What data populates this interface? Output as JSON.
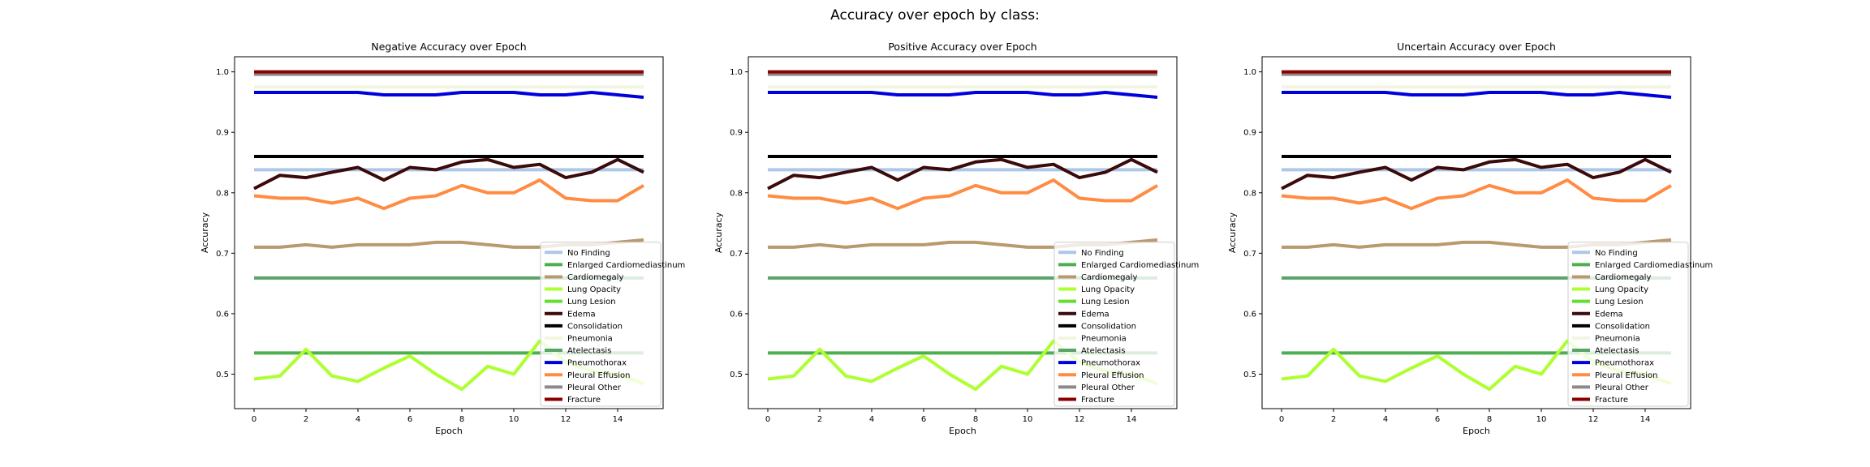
{
  "figure": {
    "title": "Accuracy over epoch by class:"
  },
  "chart_data": [
    {
      "type": "line",
      "title": "Negative Accuracy over Epoch",
      "xlabel": "Epoch",
      "ylabel": "Accuracy",
      "xlim": [
        -0.75,
        15.75
      ],
      "ylim": [
        0.443,
        1.025
      ],
      "xticks": [
        0,
        2,
        4,
        6,
        8,
        10,
        12,
        14
      ],
      "yticks": [
        0.5,
        0.6,
        0.7,
        0.8,
        0.9,
        1.0
      ],
      "ytick_labels": [
        "0.5",
        "0.6",
        "0.7",
        "0.8",
        "0.9",
        "1.0"
      ],
      "grid": false,
      "legend_position": "lower-right",
      "x": [
        0,
        1,
        2,
        3,
        4,
        5,
        6,
        7,
        8,
        9,
        10,
        11,
        12,
        13,
        14,
        15
      ],
      "series": [
        {
          "name": "No Finding",
          "color": "#aec7e8",
          "values": [
            0.838,
            0.838,
            0.838,
            0.838,
            0.838,
            0.838,
            0.838,
            0.838,
            0.838,
            0.838,
            0.838,
            0.838,
            0.838,
            0.838,
            0.838,
            0.838
          ]
        },
        {
          "name": "Enlarged Cardiomediastinum",
          "color": "#4caf50",
          "values": [
            0.535,
            0.535,
            0.535,
            0.535,
            0.535,
            0.535,
            0.535,
            0.535,
            0.535,
            0.535,
            0.535,
            0.535,
            0.535,
            0.535,
            0.535,
            0.535
          ]
        },
        {
          "name": "Cardiomegaly",
          "color": "#b89a6e",
          "values": [
            0.71,
            0.71,
            0.714,
            0.71,
            0.714,
            0.714,
            0.714,
            0.718,
            0.718,
            0.714,
            0.71,
            0.71,
            0.714,
            0.714,
            0.718,
            0.722
          ]
        },
        {
          "name": "Lung Opacity",
          "color": "#adff2f",
          "values": [
            0.492,
            0.497,
            0.541,
            0.497,
            0.488,
            0.51,
            0.53,
            0.5,
            0.475,
            0.513,
            0.5,
            0.555,
            0.52,
            0.505,
            0.5,
            0.484
          ]
        },
        {
          "name": "Lung Lesion",
          "color": "#66dd33",
          "values": [
            0.997,
            0.997,
            0.997,
            0.997,
            0.997,
            0.997,
            0.997,
            0.997,
            0.997,
            0.997,
            0.997,
            0.997,
            0.997,
            0.997,
            0.997,
            0.997
          ]
        },
        {
          "name": "Edema",
          "color": "#3b0a0a",
          "values": [
            0.807,
            0.829,
            0.825,
            0.834,
            0.842,
            0.821,
            0.842,
            0.838,
            0.851,
            0.855,
            0.842,
            0.847,
            0.825,
            0.834,
            0.855,
            0.834
          ]
        },
        {
          "name": "Consolidation",
          "color": "#000000",
          "values": [
            0.86,
            0.86,
            0.86,
            0.86,
            0.86,
            0.86,
            0.86,
            0.86,
            0.86,
            0.86,
            0.86,
            0.86,
            0.86,
            0.86,
            0.86,
            0.86
          ]
        },
        {
          "name": "Pneumonia",
          "color": "#f2f5e0",
          "values": [
            0.975,
            0.975,
            0.975,
            0.975,
            0.975,
            0.975,
            0.975,
            0.975,
            0.975,
            0.975,
            0.975,
            0.975,
            0.975,
            0.975,
            0.975,
            0.975
          ]
        },
        {
          "name": "Atelectasis",
          "color": "#5aa469",
          "values": [
            0.659,
            0.659,
            0.659,
            0.659,
            0.659,
            0.659,
            0.659,
            0.659,
            0.659,
            0.659,
            0.659,
            0.659,
            0.659,
            0.659,
            0.659,
            0.659
          ]
        },
        {
          "name": "Pneumothorax",
          "color": "#0000dd",
          "values": [
            0.966,
            0.966,
            0.966,
            0.966,
            0.966,
            0.962,
            0.962,
            0.962,
            0.966,
            0.966,
            0.966,
            0.962,
            0.962,
            0.966,
            0.962,
            0.958
          ]
        },
        {
          "name": "Pleural Effusion",
          "color": "#ff8c42",
          "values": [
            0.795,
            0.791,
            0.791,
            0.783,
            0.791,
            0.774,
            0.791,
            0.795,
            0.812,
            0.8,
            0.8,
            0.821,
            0.791,
            0.787,
            0.787,
            0.812
          ]
        },
        {
          "name": "Pleural Other",
          "color": "#8a8a8a",
          "values": [
            0.996,
            0.996,
            0.996,
            0.996,
            0.996,
            0.996,
            0.996,
            0.996,
            0.996,
            0.996,
            0.996,
            0.996,
            0.996,
            0.996,
            0.996,
            0.996
          ]
        },
        {
          "name": "Fracture",
          "color": "#8b0000",
          "values": [
            1.0,
            1.0,
            1.0,
            1.0,
            1.0,
            1.0,
            1.0,
            1.0,
            1.0,
            1.0,
            1.0,
            1.0,
            1.0,
            1.0,
            1.0,
            1.0
          ]
        }
      ]
    },
    {
      "type": "line",
      "title": "Positive Accuracy over Epoch",
      "xlabel": "Epoch",
      "ylabel": "Accuracy",
      "xlim": [
        -0.75,
        15.75
      ],
      "ylim": [
        0.443,
        1.025
      ],
      "xticks": [
        0,
        2,
        4,
        6,
        8,
        10,
        12,
        14
      ],
      "yticks": [
        0.5,
        0.6,
        0.7,
        0.8,
        0.9,
        1.0
      ],
      "ytick_labels": [
        "0.5",
        "0.6",
        "0.7",
        "0.8",
        "0.9",
        "1.0"
      ],
      "grid": false,
      "legend_position": "lower-right",
      "x": [
        0,
        1,
        2,
        3,
        4,
        5,
        6,
        7,
        8,
        9,
        10,
        11,
        12,
        13,
        14,
        15
      ],
      "series": [
        {
          "name": "No Finding",
          "color": "#aec7e8",
          "values": [
            0.838,
            0.838,
            0.838,
            0.838,
            0.838,
            0.838,
            0.838,
            0.838,
            0.838,
            0.838,
            0.838,
            0.838,
            0.838,
            0.838,
            0.838,
            0.838
          ]
        },
        {
          "name": "Enlarged Cardiomediastinum",
          "color": "#4caf50",
          "values": [
            0.535,
            0.535,
            0.535,
            0.535,
            0.535,
            0.535,
            0.535,
            0.535,
            0.535,
            0.535,
            0.535,
            0.535,
            0.535,
            0.535,
            0.535,
            0.535
          ]
        },
        {
          "name": "Cardiomegaly",
          "color": "#b89a6e",
          "values": [
            0.71,
            0.71,
            0.714,
            0.71,
            0.714,
            0.714,
            0.714,
            0.718,
            0.718,
            0.714,
            0.71,
            0.71,
            0.714,
            0.714,
            0.718,
            0.722
          ]
        },
        {
          "name": "Lung Opacity",
          "color": "#adff2f",
          "values": [
            0.492,
            0.497,
            0.541,
            0.497,
            0.488,
            0.51,
            0.53,
            0.5,
            0.475,
            0.513,
            0.5,
            0.555,
            0.52,
            0.505,
            0.5,
            0.484
          ]
        },
        {
          "name": "Lung Lesion",
          "color": "#66dd33",
          "values": [
            0.997,
            0.997,
            0.997,
            0.997,
            0.997,
            0.997,
            0.997,
            0.997,
            0.997,
            0.997,
            0.997,
            0.997,
            0.997,
            0.997,
            0.997,
            0.997
          ]
        },
        {
          "name": "Edema",
          "color": "#3b0a0a",
          "values": [
            0.807,
            0.829,
            0.825,
            0.834,
            0.842,
            0.821,
            0.842,
            0.838,
            0.851,
            0.855,
            0.842,
            0.847,
            0.825,
            0.834,
            0.855,
            0.834
          ]
        },
        {
          "name": "Consolidation",
          "color": "#000000",
          "values": [
            0.86,
            0.86,
            0.86,
            0.86,
            0.86,
            0.86,
            0.86,
            0.86,
            0.86,
            0.86,
            0.86,
            0.86,
            0.86,
            0.86,
            0.86,
            0.86
          ]
        },
        {
          "name": "Pneumonia",
          "color": "#f2f5e0",
          "values": [
            0.975,
            0.975,
            0.975,
            0.975,
            0.975,
            0.975,
            0.975,
            0.975,
            0.975,
            0.975,
            0.975,
            0.975,
            0.975,
            0.975,
            0.975,
            0.975
          ]
        },
        {
          "name": "Atelectasis",
          "color": "#5aa469",
          "values": [
            0.659,
            0.659,
            0.659,
            0.659,
            0.659,
            0.659,
            0.659,
            0.659,
            0.659,
            0.659,
            0.659,
            0.659,
            0.659,
            0.659,
            0.659,
            0.659
          ]
        },
        {
          "name": "Pneumothorax",
          "color": "#0000dd",
          "values": [
            0.966,
            0.966,
            0.966,
            0.966,
            0.966,
            0.962,
            0.962,
            0.962,
            0.966,
            0.966,
            0.966,
            0.962,
            0.962,
            0.966,
            0.962,
            0.958
          ]
        },
        {
          "name": "Pleural Effusion",
          "color": "#ff8c42",
          "values": [
            0.795,
            0.791,
            0.791,
            0.783,
            0.791,
            0.774,
            0.791,
            0.795,
            0.812,
            0.8,
            0.8,
            0.821,
            0.791,
            0.787,
            0.787,
            0.812
          ]
        },
        {
          "name": "Pleural Other",
          "color": "#8a8a8a",
          "values": [
            0.996,
            0.996,
            0.996,
            0.996,
            0.996,
            0.996,
            0.996,
            0.996,
            0.996,
            0.996,
            0.996,
            0.996,
            0.996,
            0.996,
            0.996,
            0.996
          ]
        },
        {
          "name": "Fracture",
          "color": "#8b0000",
          "values": [
            1.0,
            1.0,
            1.0,
            1.0,
            1.0,
            1.0,
            1.0,
            1.0,
            1.0,
            1.0,
            1.0,
            1.0,
            1.0,
            1.0,
            1.0,
            1.0
          ]
        }
      ]
    },
    {
      "type": "line",
      "title": "Uncertain Accuracy over Epoch",
      "xlabel": "Epoch",
      "ylabel": "Accuracy",
      "xlim": [
        -0.75,
        15.75
      ],
      "ylim": [
        0.443,
        1.025
      ],
      "xticks": [
        0,
        2,
        4,
        6,
        8,
        10,
        12,
        14
      ],
      "yticks": [
        0.5,
        0.6,
        0.7,
        0.8,
        0.9,
        1.0
      ],
      "ytick_labels": [
        "0.5",
        "0.6",
        "0.7",
        "0.8",
        "0.9",
        "1.0"
      ],
      "grid": false,
      "legend_position": "lower-right",
      "x": [
        0,
        1,
        2,
        3,
        4,
        5,
        6,
        7,
        8,
        9,
        10,
        11,
        12,
        13,
        14,
        15
      ],
      "series": [
        {
          "name": "No Finding",
          "color": "#aec7e8",
          "values": [
            0.838,
            0.838,
            0.838,
            0.838,
            0.838,
            0.838,
            0.838,
            0.838,
            0.838,
            0.838,
            0.838,
            0.838,
            0.838,
            0.838,
            0.838,
            0.838
          ]
        },
        {
          "name": "Enlarged Cardiomediastinum",
          "color": "#4caf50",
          "values": [
            0.535,
            0.535,
            0.535,
            0.535,
            0.535,
            0.535,
            0.535,
            0.535,
            0.535,
            0.535,
            0.535,
            0.535,
            0.535,
            0.535,
            0.535,
            0.535
          ]
        },
        {
          "name": "Cardiomegaly",
          "color": "#b89a6e",
          "values": [
            0.71,
            0.71,
            0.714,
            0.71,
            0.714,
            0.714,
            0.714,
            0.718,
            0.718,
            0.714,
            0.71,
            0.71,
            0.714,
            0.714,
            0.718,
            0.722
          ]
        },
        {
          "name": "Lung Opacity",
          "color": "#adff2f",
          "values": [
            0.492,
            0.497,
            0.541,
            0.497,
            0.488,
            0.51,
            0.53,
            0.5,
            0.475,
            0.513,
            0.5,
            0.555,
            0.52,
            0.505,
            0.5,
            0.484
          ]
        },
        {
          "name": "Lung Lesion",
          "color": "#66dd33",
          "values": [
            0.997,
            0.997,
            0.997,
            0.997,
            0.997,
            0.997,
            0.997,
            0.997,
            0.997,
            0.997,
            0.997,
            0.997,
            0.997,
            0.997,
            0.997,
            0.997
          ]
        },
        {
          "name": "Edema",
          "color": "#3b0a0a",
          "values": [
            0.807,
            0.829,
            0.825,
            0.834,
            0.842,
            0.821,
            0.842,
            0.838,
            0.851,
            0.855,
            0.842,
            0.847,
            0.825,
            0.834,
            0.855,
            0.834
          ]
        },
        {
          "name": "Consolidation",
          "color": "#000000",
          "values": [
            0.86,
            0.86,
            0.86,
            0.86,
            0.86,
            0.86,
            0.86,
            0.86,
            0.86,
            0.86,
            0.86,
            0.86,
            0.86,
            0.86,
            0.86,
            0.86
          ]
        },
        {
          "name": "Pneumonia",
          "color": "#f2f5e0",
          "values": [
            0.975,
            0.975,
            0.975,
            0.975,
            0.975,
            0.975,
            0.975,
            0.975,
            0.975,
            0.975,
            0.975,
            0.975,
            0.975,
            0.975,
            0.975,
            0.975
          ]
        },
        {
          "name": "Atelectasis",
          "color": "#5aa469",
          "values": [
            0.659,
            0.659,
            0.659,
            0.659,
            0.659,
            0.659,
            0.659,
            0.659,
            0.659,
            0.659,
            0.659,
            0.659,
            0.659,
            0.659,
            0.659,
            0.659
          ]
        },
        {
          "name": "Pneumothorax",
          "color": "#0000dd",
          "values": [
            0.966,
            0.966,
            0.966,
            0.966,
            0.966,
            0.962,
            0.962,
            0.962,
            0.966,
            0.966,
            0.966,
            0.962,
            0.962,
            0.966,
            0.962,
            0.958
          ]
        },
        {
          "name": "Pleural Effusion",
          "color": "#ff8c42",
          "values": [
            0.795,
            0.791,
            0.791,
            0.783,
            0.791,
            0.774,
            0.791,
            0.795,
            0.812,
            0.8,
            0.8,
            0.821,
            0.791,
            0.787,
            0.787,
            0.812
          ]
        },
        {
          "name": "Pleural Other",
          "color": "#8a8a8a",
          "values": [
            0.996,
            0.996,
            0.996,
            0.996,
            0.996,
            0.996,
            0.996,
            0.996,
            0.996,
            0.996,
            0.996,
            0.996,
            0.996,
            0.996,
            0.996,
            0.996
          ]
        },
        {
          "name": "Fracture",
          "color": "#8b0000",
          "values": [
            1.0,
            1.0,
            1.0,
            1.0,
            1.0,
            1.0,
            1.0,
            1.0,
            1.0,
            1.0,
            1.0,
            1.0,
            1.0,
            1.0,
            1.0,
            1.0
          ]
        }
      ]
    }
  ]
}
